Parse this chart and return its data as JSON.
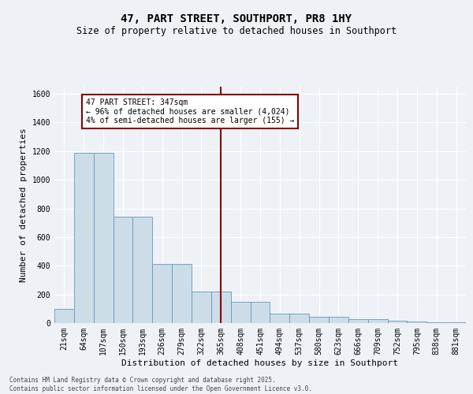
{
  "title": "47, PART STREET, SOUTHPORT, PR8 1HY",
  "subtitle": "Size of property relative to detached houses in Southport",
  "xlabel": "Distribution of detached houses by size in Southport",
  "ylabel": "Number of detached properties",
  "categories": [
    "21sqm",
    "64sqm",
    "107sqm",
    "150sqm",
    "193sqm",
    "236sqm",
    "279sqm",
    "322sqm",
    "365sqm",
    "408sqm",
    "451sqm",
    "494sqm",
    "537sqm",
    "580sqm",
    "623sqm",
    "666sqm",
    "709sqm",
    "752sqm",
    "795sqm",
    "838sqm",
    "881sqm"
  ],
  "bar_heights": [
    100,
    1190,
    1190,
    740,
    740,
    410,
    410,
    220,
    220,
    150,
    150,
    65,
    65,
    45,
    45,
    30,
    30,
    15,
    10,
    5,
    5
  ],
  "bar_color": "#ccdde8",
  "bar_edge_color": "#6699bb",
  "vline_index": 8,
  "vline_color": "#880000",
  "annotation_text": "47 PART STREET: 347sqm\n← 96% of detached houses are smaller (4,024)\n4% of semi-detached houses are larger (155) →",
  "ylim": [
    0,
    1650
  ],
  "yticks": [
    0,
    200,
    400,
    600,
    800,
    1000,
    1200,
    1400,
    1600
  ],
  "background_color": "#eef2f7",
  "grid_color": "#ffffff",
  "footer": "Contains HM Land Registry data © Crown copyright and database right 2025.\nContains public sector information licensed under the Open Government Licence v3.0.",
  "title_fontsize": 10,
  "subtitle_fontsize": 8.5,
  "axis_label_fontsize": 8,
  "tick_fontsize": 7,
  "annotation_fontsize": 7
}
